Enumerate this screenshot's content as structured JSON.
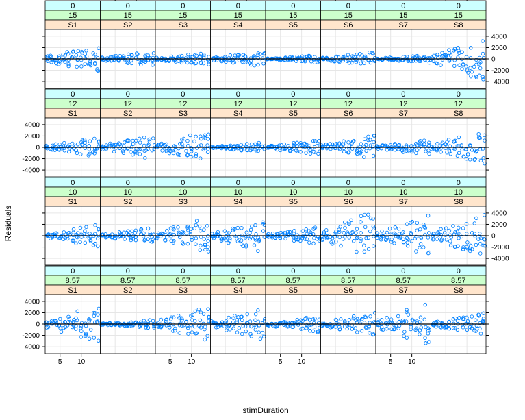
{
  "chart_data": {
    "type": "scatter",
    "xlabel": "stimDuration",
    "ylabel": "Residuals",
    "xlim": [
      1.5,
      14.5
    ],
    "ylim": [
      -5200,
      5200
    ],
    "x_ticks": [
      5,
      10
    ],
    "x_tick_labels": [
      "5",
      "10"
    ],
    "y_ticks": [
      -4000,
      -2000,
      0,
      2000,
      4000
    ],
    "y_tick_labels": [
      "-4000",
      "-2000",
      "0",
      "2000",
      "4000"
    ],
    "subjects": [
      "S1",
      "S2",
      "S3",
      "S4",
      "S5",
      "S6",
      "S7",
      "S8"
    ],
    "rows": [
      {
        "top": "0",
        "mid": "15"
      },
      {
        "top": "0",
        "mid": "12"
      },
      {
        "top": "0",
        "mid": "10"
      },
      {
        "top": "0",
        "mid": "8.57"
      }
    ],
    "x_values": [
      2,
      3,
      4,
      5,
      6,
      7,
      8,
      9,
      10,
      11,
      12,
      13,
      14
    ],
    "panel_spread": [
      [
        2600,
        1400,
        1200,
        1500,
        700,
        1300,
        700,
        4200
      ],
      [
        1800,
        2300,
        3000,
        900,
        1400,
        2200,
        1500,
        3200
      ],
      [
        2200,
        1500,
        3500,
        3000,
        1600,
        4600,
        3800,
        4000
      ],
      [
        3600,
        800,
        3200,
        2900,
        1500,
        2200,
        4000,
        2000
      ]
    ],
    "grid": true,
    "zero_line": true,
    "marker": "circle",
    "colors": {
      "points": "#0080ff",
      "strip_top": "#ccffff",
      "strip_mid": "#ccffcc",
      "strip_bottom": "#ffe5cc",
      "grid": "#e6e6e6",
      "border": "#000000"
    }
  }
}
